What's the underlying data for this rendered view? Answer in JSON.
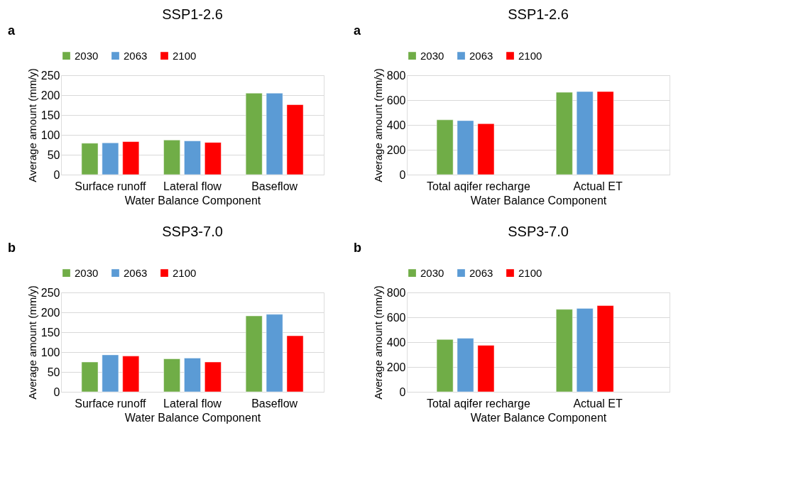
{
  "chart_data": [
    {
      "type": "bar",
      "title": "SSP1-2.6",
      "xlabel": "Water Balance Component",
      "ylabel": "Average amount (mm/y)",
      "annotations": [
        "a"
      ],
      "categories": [
        "Surface runoff",
        "Lateral flow",
        "Baseflow"
      ],
      "series": [
        {
          "name": "2030",
          "color": "#70ad47",
          "values": [
            79,
            87,
            205
          ]
        },
        {
          "name": "2063",
          "color": "#5b9bd5",
          "values": [
            80,
            85,
            205
          ]
        },
        {
          "name": "2100",
          "color": "#ff0000",
          "values": [
            83,
            81,
            176
          ]
        }
      ],
      "ylim": [
        0,
        250
      ],
      "yticks": [
        0,
        50,
        100,
        150,
        200,
        250
      ],
      "grid": "y",
      "legend": "top"
    },
    {
      "type": "bar",
      "title": "SSP1-2.6",
      "xlabel": "Water Balance Component",
      "ylabel": "Average amount (mm/y)",
      "annotations": [
        "a"
      ],
      "categories": [
        "Total aqifer recharge",
        "Actual ET"
      ],
      "series": [
        {
          "name": "2030",
          "color": "#70ad47",
          "values": [
            441,
            663
          ]
        },
        {
          "name": "2063",
          "color": "#5b9bd5",
          "values": [
            435,
            669
          ]
        },
        {
          "name": "2100",
          "color": "#ff0000",
          "values": [
            410,
            669
          ]
        }
      ],
      "ylim": [
        0,
        800
      ],
      "yticks": [
        0,
        200,
        400,
        600,
        800
      ],
      "grid": "y",
      "legend": "top"
    },
    {
      "type": "bar",
      "title": "SSP3-7.0",
      "xlabel": "Water Balance Component",
      "ylabel": "Average amount (mm/y)",
      "annotations": [
        "b"
      ],
      "categories": [
        "Surface runoff",
        "Lateral flow",
        "Baseflow"
      ],
      "series": [
        {
          "name": "2030",
          "color": "#70ad47",
          "values": [
            75,
            83,
            191
          ]
        },
        {
          "name": "2063",
          "color": "#5b9bd5",
          "values": [
            93,
            85,
            195
          ]
        },
        {
          "name": "2100",
          "color": "#ff0000",
          "values": [
            90,
            75,
            141
          ]
        }
      ],
      "ylim": [
        0,
        250
      ],
      "yticks": [
        0,
        50,
        100,
        150,
        200,
        250
      ],
      "grid": "y",
      "legend": "top"
    },
    {
      "type": "bar",
      "title": "SSP3-7.0",
      "xlabel": "Water Balance Component",
      "ylabel": "Average amount (mm/y)",
      "annotations": [
        "b"
      ],
      "categories": [
        "Total aqifer recharge",
        "Actual ET"
      ],
      "series": [
        {
          "name": "2030",
          "color": "#70ad47",
          "values": [
            422,
            664
          ]
        },
        {
          "name": "2063",
          "color": "#5b9bd5",
          "values": [
            431,
            672
          ]
        },
        {
          "name": "2100",
          "color": "#ff0000",
          "values": [
            374,
            694
          ]
        }
      ],
      "ylim": [
        0,
        800
      ],
      "yticks": [
        0,
        200,
        400,
        600,
        800
      ],
      "grid": "y",
      "legend": "top"
    }
  ]
}
